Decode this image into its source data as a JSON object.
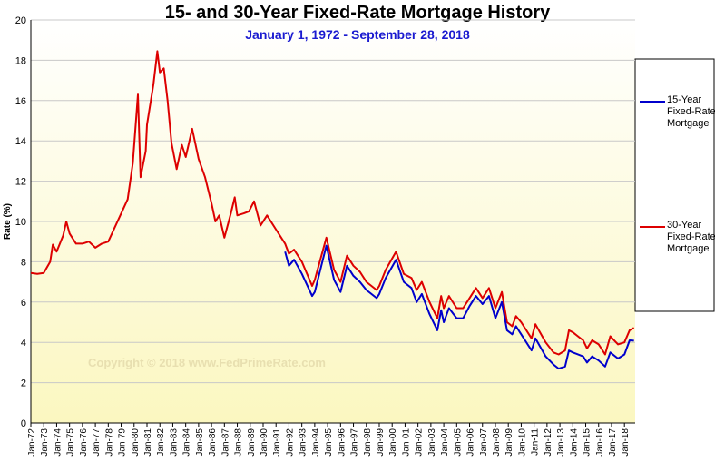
{
  "chart_data": {
    "type": "line",
    "title": "15- and 30-Year Fixed-Rate Mortgage History",
    "subtitle": "January 1, 1972  -  September 28, 2018",
    "y_label": "Rate (%)",
    "watermark": "Copyright © 2018 www.FedPrimeRate.com",
    "legend": "right",
    "grid": true,
    "xlim": [
      1972,
      2018.83
    ],
    "ylim": [
      0,
      20
    ],
    "yticks": [
      0,
      2,
      4,
      6,
      8,
      10,
      12,
      14,
      16,
      18,
      20
    ],
    "xticks": [
      {
        "value": 1972,
        "label": "Jan-72"
      },
      {
        "value": 1973,
        "label": "Jan-73"
      },
      {
        "value": 1974,
        "label": "Jan-74"
      },
      {
        "value": 1975,
        "label": "Jan-75"
      },
      {
        "value": 1976,
        "label": "Jan-76"
      },
      {
        "value": 1977,
        "label": "Jan-77"
      },
      {
        "value": 1978,
        "label": "Jan-78"
      },
      {
        "value": 1979,
        "label": "Jan-79"
      },
      {
        "value": 1980,
        "label": "Jan-80"
      },
      {
        "value": 1981,
        "label": "Jan-81"
      },
      {
        "value": 1982,
        "label": "Jan-82"
      },
      {
        "value": 1983,
        "label": "Jan-83"
      },
      {
        "value": 1984,
        "label": "Jan-84"
      },
      {
        "value": 1985,
        "label": "Jan-85"
      },
      {
        "value": 1986,
        "label": "Jan-86"
      },
      {
        "value": 1987,
        "label": "Jan-87"
      },
      {
        "value": 1988,
        "label": "Jan-88"
      },
      {
        "value": 1989,
        "label": "Jan-89"
      },
      {
        "value": 1990,
        "label": "Jan-90"
      },
      {
        "value": 1991,
        "label": "Jan-91"
      },
      {
        "value": 1992,
        "label": "Jan-92"
      },
      {
        "value": 1993,
        "label": "Jan-93"
      },
      {
        "value": 1994,
        "label": "Jan-94"
      },
      {
        "value": 1995,
        "label": "Jan-95"
      },
      {
        "value": 1996,
        "label": "Jan-96"
      },
      {
        "value": 1997,
        "label": "Jan-97"
      },
      {
        "value": 1998,
        "label": "Jan-98"
      },
      {
        "value": 1999,
        "label": "Jan-99"
      },
      {
        "value": 2000,
        "label": "Jan-00"
      },
      {
        "value": 2001,
        "label": "Jan-01"
      },
      {
        "value": 2002,
        "label": "Jan-02"
      },
      {
        "value": 2003,
        "label": "Jan-03"
      },
      {
        "value": 2004,
        "label": "Jan-04"
      },
      {
        "value": 2005,
        "label": "Jan-05"
      },
      {
        "value": 2006,
        "label": "Jan-06"
      },
      {
        "value": 2007,
        "label": "Jan-07"
      },
      {
        "value": 2008,
        "label": "Jan-08"
      },
      {
        "value": 2009,
        "label": "Jan-09"
      },
      {
        "value": 2010,
        "label": "Jan-10"
      },
      {
        "value": 2011,
        "label": "Jan-11"
      },
      {
        "value": 2012,
        "label": "Jan-12"
      },
      {
        "value": 2013,
        "label": "Jan-13"
      },
      {
        "value": 2014,
        "label": "Jan-14"
      },
      {
        "value": 2015,
        "label": "Jan-15"
      },
      {
        "value": 2016,
        "label": "Jan-16"
      },
      {
        "value": 2017,
        "label": "Jan-17"
      },
      {
        "value": 2018,
        "label": "Jan-18"
      }
    ],
    "x": [
      1972.0,
      1972.5,
      1973.0,
      1973.5,
      1973.7,
      1974.0,
      1974.5,
      1974.75,
      1975.0,
      1975.5,
      1976.0,
      1976.5,
      1977.0,
      1977.5,
      1978.0,
      1978.5,
      1979.0,
      1979.5,
      1979.9,
      1980.3,
      1980.5,
      1980.9,
      1981.0,
      1981.5,
      1981.8,
      1982.0,
      1982.3,
      1982.6,
      1982.9,
      1983.3,
      1983.7,
      1984.0,
      1984.5,
      1985.0,
      1985.5,
      1986.0,
      1986.3,
      1986.6,
      1987.0,
      1987.5,
      1987.8,
      1988.0,
      1988.5,
      1988.9,
      1989.3,
      1989.8,
      1990.3,
      1991.0,
      1991.7,
      1992.0,
      1992.4,
      1993.0,
      1993.8,
      1994.0,
      1994.9,
      1995.5,
      1996.0,
      1996.5,
      1997.0,
      1997.5,
      1998.0,
      1998.8,
      1999.0,
      1999.5,
      2000.3,
      2000.9,
      2001.5,
      2001.9,
      2002.3,
      2002.9,
      2003.5,
      2003.8,
      2004.0,
      2004.4,
      2005.0,
      2005.5,
      2006.0,
      2006.5,
      2007.0,
      2007.5,
      2008.0,
      2008.5,
      2008.9,
      2009.3,
      2009.6,
      2010.0,
      2010.8,
      2011.1,
      2011.9,
      2012.5,
      2012.9,
      2013.4,
      2013.7,
      2014.0,
      2014.8,
      2015.1,
      2015.5,
      2016.0,
      2016.5,
      2016.9,
      2017.5,
      2018.0,
      2018.4,
      2018.74
    ],
    "series": [
      {
        "name": "15-Year Fixed-Rate Mortgage",
        "color": "#0000cc",
        "values": [
          null,
          null,
          null,
          null,
          null,
          null,
          null,
          null,
          null,
          null,
          null,
          null,
          null,
          null,
          null,
          null,
          null,
          null,
          null,
          null,
          null,
          null,
          null,
          null,
          null,
          null,
          null,
          null,
          null,
          null,
          null,
          null,
          null,
          null,
          null,
          null,
          null,
          null,
          null,
          null,
          null,
          null,
          null,
          null,
          null,
          null,
          null,
          null,
          8.5,
          7.8,
          8.1,
          7.4,
          6.3,
          6.5,
          8.8,
          7.1,
          6.5,
          7.8,
          7.3,
          7.0,
          6.6,
          6.2,
          6.4,
          7.2,
          8.1,
          7.0,
          6.7,
          6.0,
          6.4,
          5.4,
          4.6,
          5.6,
          5.0,
          5.7,
          5.2,
          5.2,
          5.8,
          6.3,
          5.9,
          6.3,
          5.2,
          6.0,
          4.6,
          4.4,
          4.8,
          4.4,
          3.6,
          4.2,
          3.3,
          2.9,
          2.7,
          2.8,
          3.6,
          3.5,
          3.3,
          3.0,
          3.3,
          3.1,
          2.8,
          3.5,
          3.2,
          3.4,
          4.1,
          4.08
        ]
      },
      {
        "name": "30-Year Fixed-Rate Mortgage",
        "color": "#dd0000",
        "values": [
          7.44,
          7.4,
          7.44,
          8.0,
          8.85,
          8.5,
          9.3,
          10.0,
          9.4,
          8.9,
          8.9,
          9.0,
          8.7,
          8.9,
          9.0,
          9.7,
          10.4,
          11.1,
          12.9,
          16.3,
          12.2,
          13.5,
          14.8,
          16.8,
          18.45,
          17.4,
          17.6,
          16.0,
          13.9,
          12.6,
          13.8,
          13.2,
          14.6,
          13.1,
          12.2,
          10.9,
          10.0,
          10.3,
          9.2,
          10.4,
          11.2,
          10.3,
          10.4,
          10.5,
          11.0,
          9.8,
          10.3,
          9.6,
          8.9,
          8.4,
          8.6,
          8.0,
          6.8,
          7.1,
          9.2,
          7.6,
          7.0,
          8.3,
          7.8,
          7.5,
          7.0,
          6.6,
          6.8,
          7.6,
          8.5,
          7.4,
          7.2,
          6.6,
          7.0,
          6.0,
          5.2,
          6.3,
          5.7,
          6.3,
          5.7,
          5.7,
          6.2,
          6.7,
          6.2,
          6.7,
          5.7,
          6.5,
          5.0,
          4.8,
          5.3,
          5.0,
          4.2,
          4.9,
          4.0,
          3.5,
          3.4,
          3.6,
          4.6,
          4.5,
          4.1,
          3.7,
          4.1,
          3.9,
          3.4,
          4.3,
          3.9,
          4.0,
          4.6,
          4.72
        ]
      }
    ]
  }
}
